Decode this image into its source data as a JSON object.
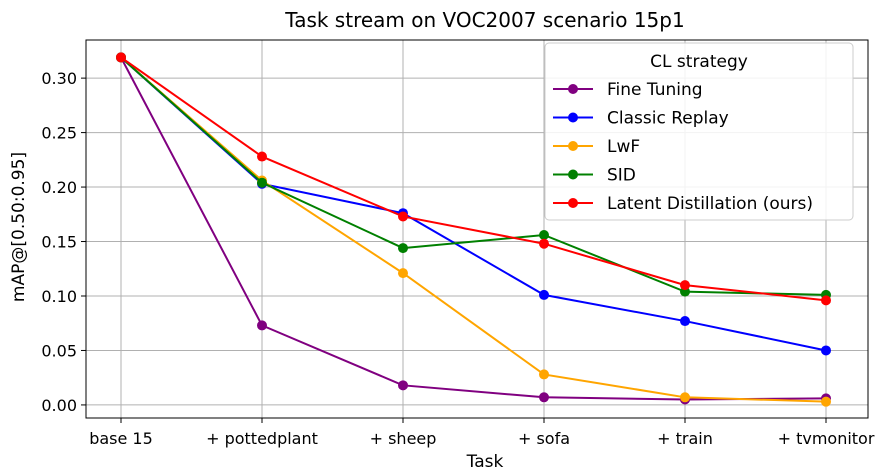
{
  "chart_data": {
    "type": "line",
    "title": "Task stream on VOC2007 scenario 15p1",
    "xlabel": "Task",
    "ylabel": "mAP@[0.50:0.95]",
    "categories": [
      "base 15",
      "+ pottedplant",
      "+ sheep",
      "+ sofa",
      "+ train",
      "+ tvmonitor"
    ],
    "ylim": [
      -0.012,
      0.335
    ],
    "yticks": [
      0.0,
      0.05,
      0.1,
      0.15,
      0.2,
      0.25,
      0.3
    ],
    "ytick_labels": [
      "0.00",
      "0.05",
      "0.10",
      "0.15",
      "0.20",
      "0.25",
      "0.30"
    ],
    "grid": true,
    "legend": {
      "title": "CL strategy",
      "placement": "top-right"
    },
    "series": [
      {
        "name": "Fine Tuning",
        "color": "#800080",
        "values": [
          0.319,
          0.073,
          0.018,
          0.007,
          0.005,
          0.006
        ]
      },
      {
        "name": "Classic Replay",
        "color": "#0000ff",
        "values": [
          0.319,
          0.203,
          0.176,
          0.101,
          0.077,
          0.05
        ]
      },
      {
        "name": "LwF",
        "color": "#ffa500",
        "values": [
          0.319,
          0.206,
          0.121,
          0.028,
          0.007,
          0.003
        ]
      },
      {
        "name": "SID",
        "color": "#008000",
        "values": [
          0.319,
          0.204,
          0.144,
          0.156,
          0.104,
          0.101
        ]
      },
      {
        "name": "Latent Distillation (ours)",
        "color": "#ff0000",
        "values": [
          0.319,
          0.228,
          0.173,
          0.148,
          0.11,
          0.096
        ]
      }
    ]
  }
}
